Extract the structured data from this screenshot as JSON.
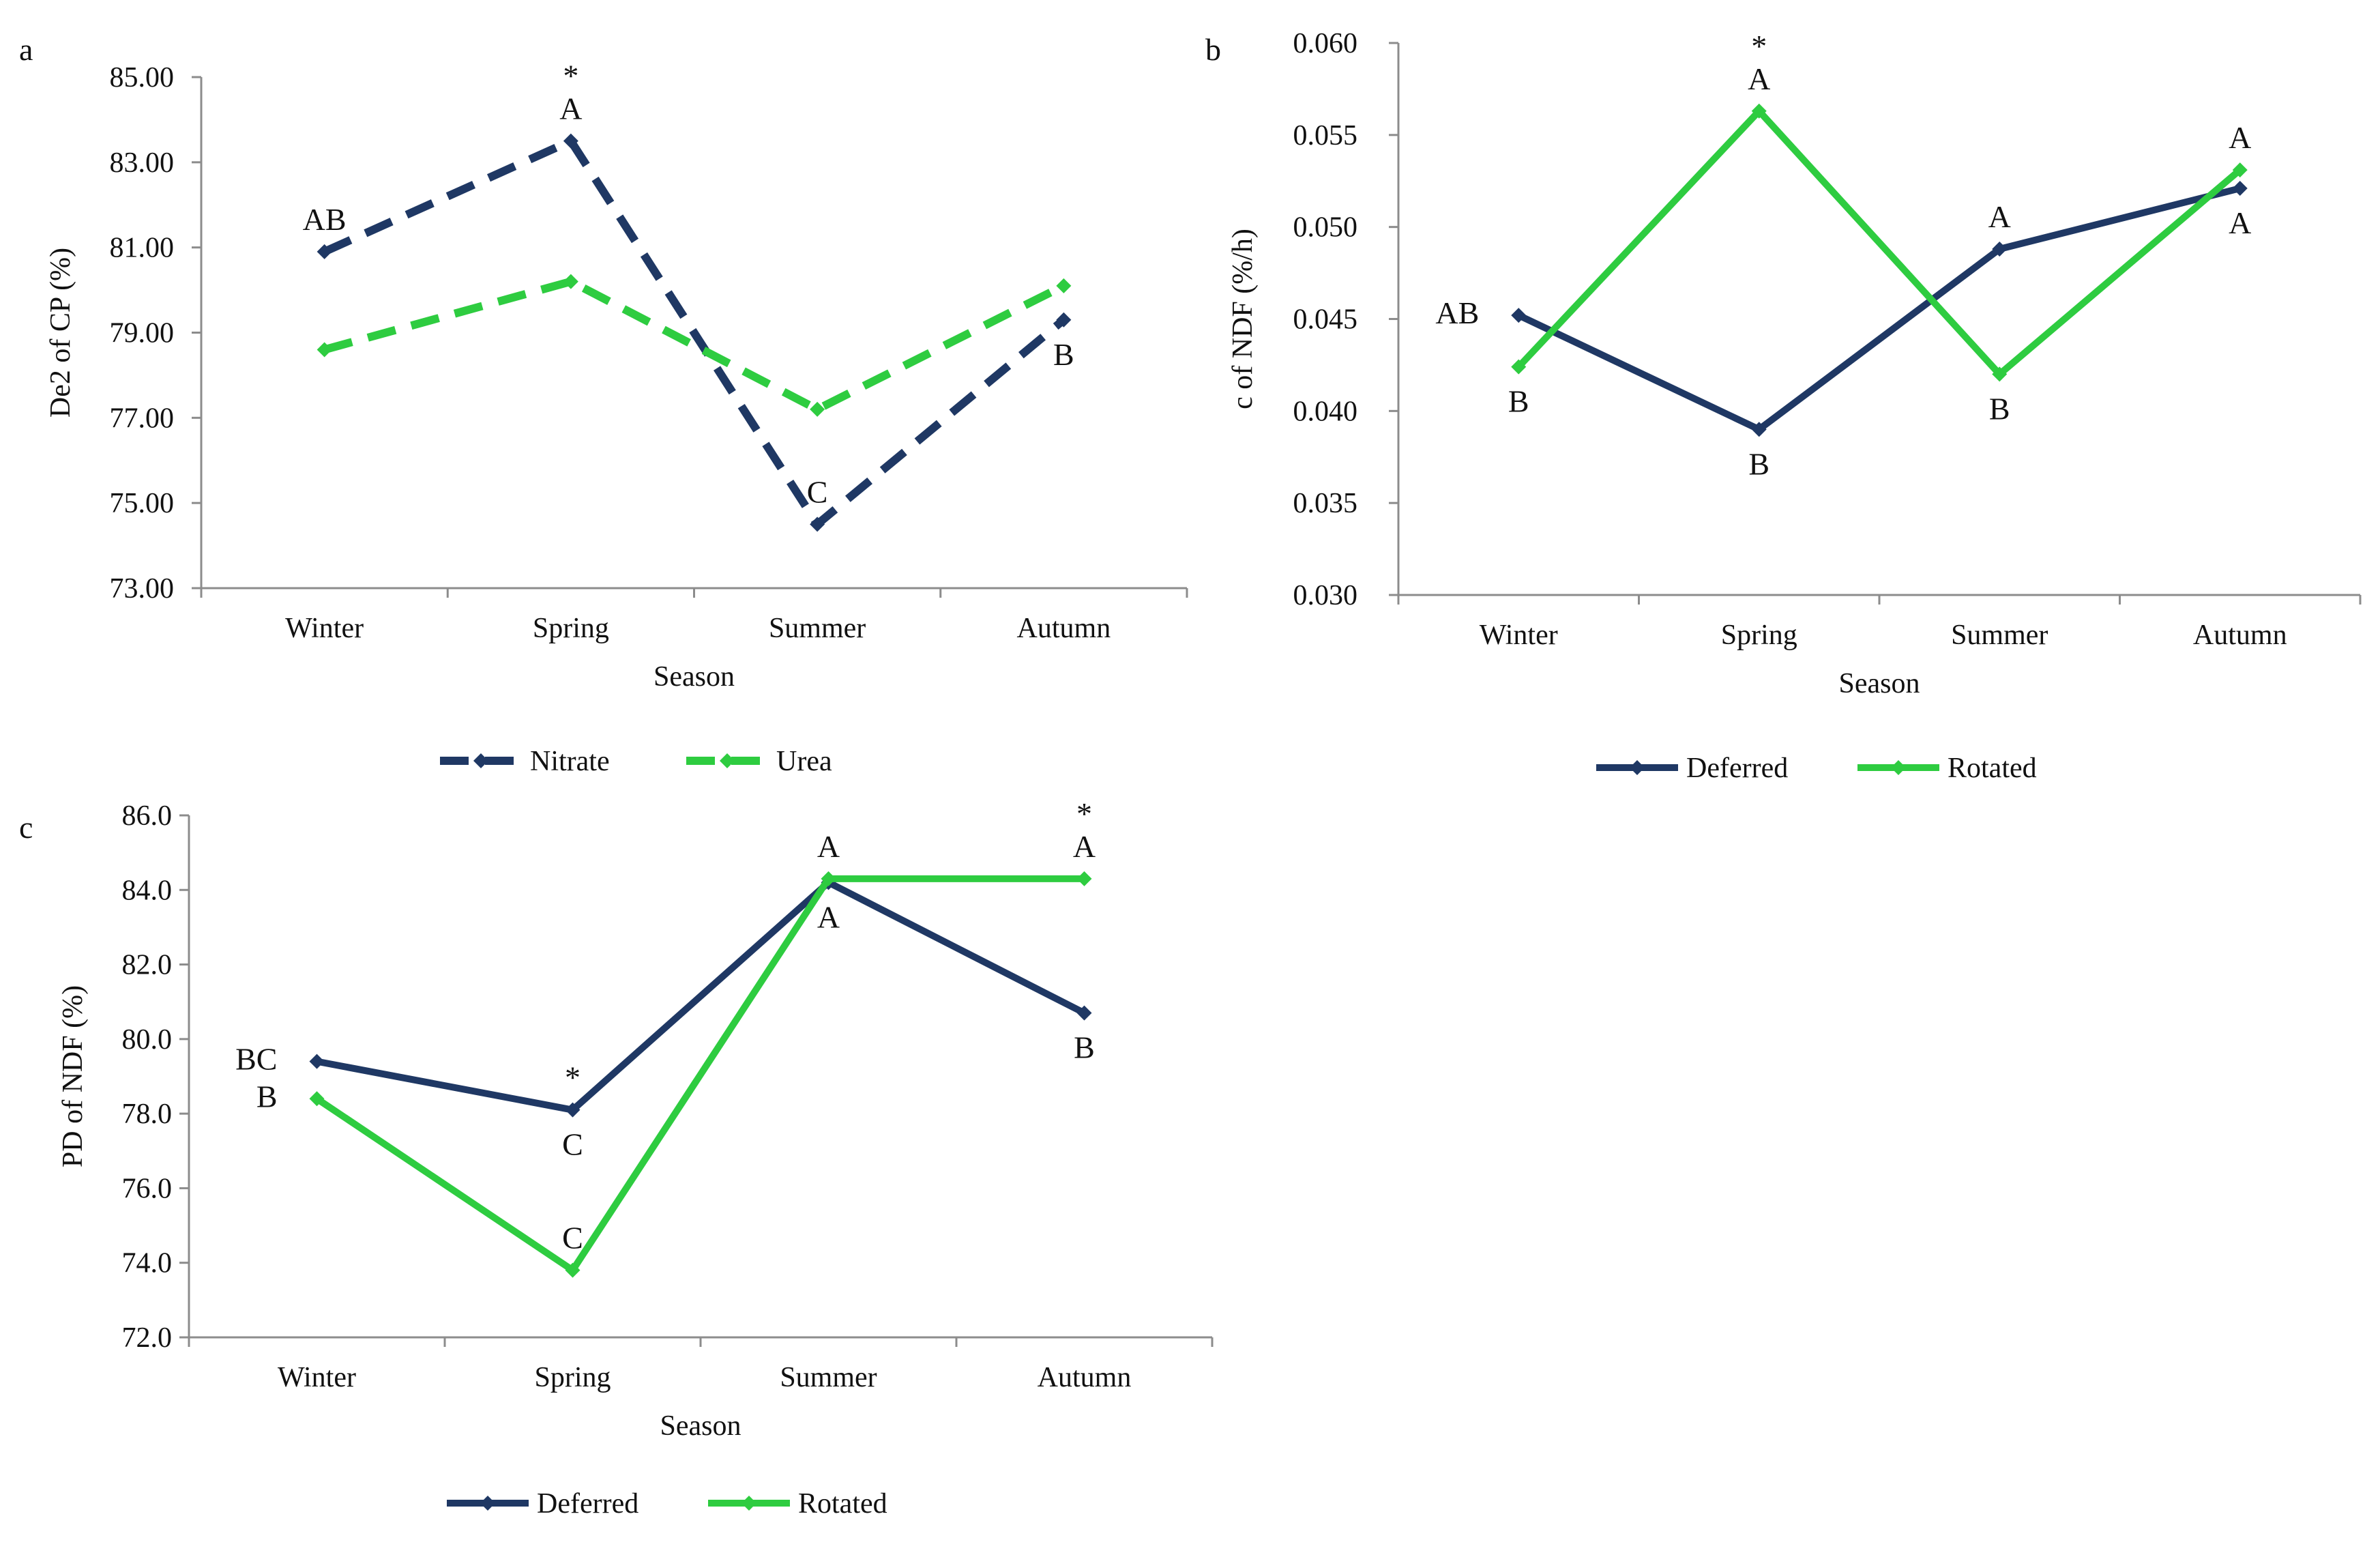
{
  "panels": [
    {
      "panel_label": "a",
      "legend_style": "dashed"
    },
    {
      "panel_label": "b",
      "legend_style": "solid"
    },
    {
      "panel_label": "c",
      "legend_style": "solid"
    }
  ],
  "chart_data": [
    {
      "type": "line",
      "title": "",
      "xlabel": "Season",
      "ylabel": "De2 of CP (%)",
      "categories": [
        "Winter",
        "Spring",
        "Summer",
        "Autumn"
      ],
      "ylim": [
        73,
        85
      ],
      "yticks": [
        73,
        75,
        77,
        79,
        81,
        83,
        85
      ],
      "ytick_labels": [
        "73.00",
        "75.00",
        "77.00",
        "79.00",
        "81.00",
        "83.00",
        "85.00"
      ],
      "grid": false,
      "legend_position": "bottom",
      "series": [
        {
          "name": "Nitrate",
          "values": [
            80.9,
            83.5,
            74.5,
            79.3
          ],
          "color": "#1f3864",
          "dashed": true
        },
        {
          "name": "Urea",
          "values": [
            78.6,
            80.2,
            77.2,
            80.1
          ],
          "color": "#2ecc40",
          "dashed": true
        }
      ],
      "annotations": [
        {
          "category": "Winter",
          "series": "Nitrate",
          "text": "AB",
          "pos": "above"
        },
        {
          "category": "Spring",
          "series": "Nitrate",
          "text": "A",
          "pos": "above"
        },
        {
          "category": "Spring",
          "series": "Nitrate",
          "text": "*",
          "pos": "above2"
        },
        {
          "category": "Summer",
          "series": "Nitrate",
          "text": "C",
          "pos": "above"
        },
        {
          "category": "Autumn",
          "series": "Nitrate",
          "text": "B",
          "pos": "below"
        }
      ]
    },
    {
      "type": "line",
      "title": "",
      "xlabel": "Season",
      "ylabel": "c of  NDF (%/h)",
      "categories": [
        "Winter",
        "Spring",
        "Summer",
        "Autumn"
      ],
      "ylim": [
        0.03,
        0.06
      ],
      "yticks": [
        0.03,
        0.035,
        0.04,
        0.045,
        0.05,
        0.055,
        0.06
      ],
      "ytick_labels": [
        "0.030",
        "0.035",
        "0.040",
        "0.045",
        "0.050",
        "0.055",
        "0.060"
      ],
      "grid": false,
      "legend_position": "bottom",
      "series": [
        {
          "name": "Deferred",
          "values": [
            0.0452,
            0.039,
            0.0488,
            0.0521
          ],
          "color": "#1f3864",
          "dashed": false
        },
        {
          "name": "Rotated",
          "values": [
            0.0424,
            0.0563,
            0.042,
            0.0531
          ],
          "color": "#2ecc40",
          "dashed": false
        }
      ],
      "annotations": [
        {
          "category": "Winter",
          "series": "Deferred",
          "text": "AB",
          "pos": "left"
        },
        {
          "category": "Winter",
          "series": "Rotated",
          "text": "B",
          "pos": "below"
        },
        {
          "category": "Spring",
          "series": "Rotated",
          "text": "A",
          "pos": "above"
        },
        {
          "category": "Spring",
          "series": "Rotated",
          "text": "*",
          "pos": "above2"
        },
        {
          "category": "Spring",
          "series": "Deferred",
          "text": "B",
          "pos": "below"
        },
        {
          "category": "Summer",
          "series": "Deferred",
          "text": "A",
          "pos": "above"
        },
        {
          "category": "Summer",
          "series": "Rotated",
          "text": "B",
          "pos": "below"
        },
        {
          "category": "Autumn",
          "series": "Rotated",
          "text": "A",
          "pos": "above"
        },
        {
          "category": "Autumn",
          "series": "Deferred",
          "text": "A",
          "pos": "below"
        }
      ]
    },
    {
      "type": "line",
      "title": "",
      "xlabel": "Season",
      "ylabel": "PD of NDF (%)",
      "categories": [
        "Winter",
        "Spring",
        "Summer",
        "Autumn"
      ],
      "ylim": [
        72,
        86
      ],
      "yticks": [
        72,
        74,
        76,
        78,
        80,
        82,
        84,
        86
      ],
      "ytick_labels": [
        "72.0",
        "74.0",
        "76.0",
        "78.0",
        "80.0",
        "82.0",
        "84.0",
        "86.0"
      ],
      "grid": false,
      "legend_position": "bottom",
      "series": [
        {
          "name": "Deferred",
          "values": [
            79.4,
            78.1,
            84.2,
            80.7
          ],
          "color": "#1f3864",
          "dashed": false
        },
        {
          "name": "Rotated",
          "values": [
            78.4,
            73.8,
            84.3,
            84.3
          ],
          "color": "#2ecc40",
          "dashed": false
        }
      ],
      "annotations": [
        {
          "category": "Winter",
          "series": "Deferred",
          "text": "BC",
          "pos": "left"
        },
        {
          "category": "Winter",
          "series": "Rotated",
          "text": "B",
          "pos": "left"
        },
        {
          "category": "Spring",
          "series": "Deferred",
          "text": "*",
          "pos": "above"
        },
        {
          "category": "Spring",
          "series": "Deferred",
          "text": "C",
          "pos": "below"
        },
        {
          "category": "Spring",
          "series": "Rotated",
          "text": "C",
          "pos": "above"
        },
        {
          "category": "Summer",
          "series": "Rotated",
          "text": "A",
          "pos": "above"
        },
        {
          "category": "Summer",
          "series": "Deferred",
          "text": "A",
          "pos": "below"
        },
        {
          "category": "Autumn",
          "series": "Rotated",
          "text": "A",
          "pos": "above"
        },
        {
          "category": "Autumn",
          "series": "Rotated",
          "text": "*",
          "pos": "above2"
        },
        {
          "category": "Autumn",
          "series": "Deferred",
          "text": "B",
          "pos": "below"
        }
      ]
    }
  ]
}
